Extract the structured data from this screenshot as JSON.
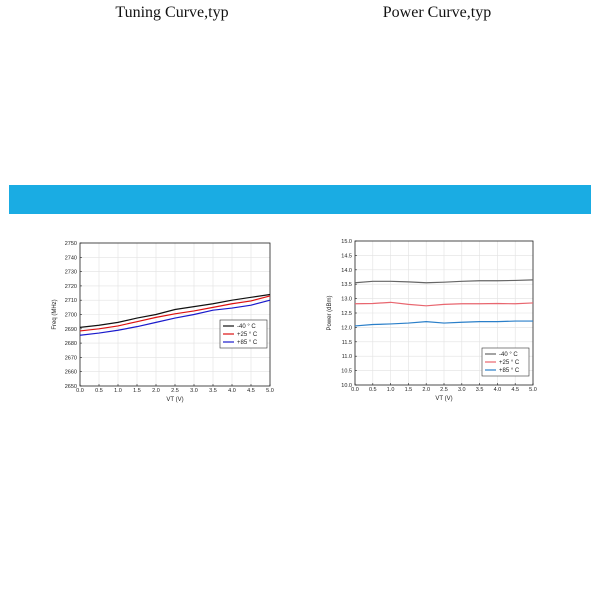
{
  "header": {
    "left_title": "Tuning Curve,typ",
    "right_title": "Power Curve,typ",
    "color": "#1aace3"
  },
  "chart_data": [
    {
      "type": "line",
      "title": "Tuning Curve,typ",
      "xlabel": "VT (V)",
      "ylabel": "Freq (MHz)",
      "xlim": [
        0,
        5
      ],
      "ylim": [
        2650,
        2750
      ],
      "xticks": [
        "0.0",
        "0.5",
        "1.0",
        "1.5",
        "2.0",
        "2.5",
        "3.0",
        "3.5",
        "4.0",
        "4.5",
        "5.0"
      ],
      "yticks": [
        "2650",
        "2660",
        "2670",
        "2680",
        "2690",
        "2700",
        "2710",
        "2720",
        "2730",
        "2740",
        "2750"
      ],
      "grid": true,
      "legend": "middle-right",
      "x": [
        0,
        0.5,
        1.0,
        1.5,
        2.0,
        2.5,
        3.0,
        3.5,
        4.0,
        4.5,
        5.0
      ],
      "series": [
        {
          "name": "-40 ° C",
          "color": "#111111",
          "values": [
            2691,
            2692.5,
            2694.5,
            2697.5,
            2700,
            2703.5,
            2705.5,
            2707.5,
            2710,
            2712,
            2714
          ]
        },
        {
          "name": "+25 ° C",
          "color": "#dd1111",
          "values": [
            2688.5,
            2690,
            2692,
            2695,
            2698,
            2700.5,
            2702.5,
            2705,
            2707.5,
            2709.5,
            2713
          ]
        },
        {
          "name": "+85 ° C",
          "color": "#1a1acc",
          "values": [
            2685.5,
            2687,
            2689,
            2691.5,
            2694.5,
            2697.5,
            2700,
            2703,
            2704.5,
            2706.5,
            2710
          ]
        }
      ]
    },
    {
      "type": "line",
      "title": "Power Curve,typ",
      "xlabel": "VT (V)",
      "ylabel": "Power (dBm)",
      "xlim": [
        0,
        5
      ],
      "ylim": [
        10.0,
        15.0
      ],
      "xticks": [
        "0.0",
        "0.5",
        "1.0",
        "1.5",
        "2.0",
        "2.5",
        "3.0",
        "3.5",
        "4.0",
        "4.5",
        "5.0"
      ],
      "yticks": [
        "10.0",
        "10.5",
        "11.0",
        "11.5",
        "12.0",
        "12.5",
        "13.0",
        "13.5",
        "14.0",
        "14.5",
        "15.0"
      ],
      "grid": true,
      "legend": "bottom-right",
      "x": [
        0,
        0.5,
        1.0,
        1.5,
        2.0,
        2.5,
        3.0,
        3.5,
        4.0,
        4.5,
        5.0
      ],
      "series": [
        {
          "name": "-40 ° C",
          "color": "#666666",
          "values": [
            13.55,
            13.6,
            13.6,
            13.58,
            13.55,
            13.57,
            13.6,
            13.62,
            13.62,
            13.63,
            13.65
          ]
        },
        {
          "name": "+25 ° C",
          "color": "#e8666f",
          "values": [
            12.82,
            12.83,
            12.87,
            12.8,
            12.75,
            12.8,
            12.82,
            12.82,
            12.83,
            12.82,
            12.85
          ]
        },
        {
          "name": "+85 ° C",
          "color": "#2a7fc9",
          "values": [
            12.05,
            12.1,
            12.12,
            12.15,
            12.2,
            12.15,
            12.18,
            12.2,
            12.2,
            12.22,
            12.22
          ]
        }
      ]
    }
  ]
}
